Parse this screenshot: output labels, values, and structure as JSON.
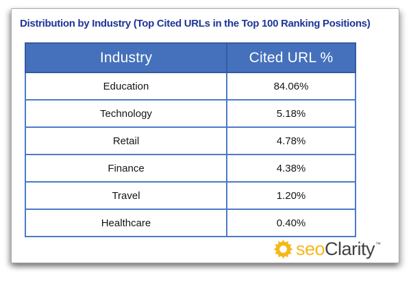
{
  "page": {
    "title": "Distribution by Industry (Top Cited URLs in the Top 100 Ranking Positions)"
  },
  "table": {
    "headers": [
      "Industry",
      "Cited URL %"
    ],
    "rows": [
      [
        "Education",
        "84.06%"
      ],
      [
        "Technology",
        "5.18%"
      ],
      [
        "Retail",
        "4.78%"
      ],
      [
        "Finance",
        "4.38%"
      ],
      [
        "Travel",
        "1.20%"
      ],
      [
        "Healthcare",
        "0.40%"
      ]
    ]
  },
  "logo": {
    "seo": "seo",
    "clarity": "Clarity",
    "trademark": "™",
    "icon": "sunburst-gear-icon"
  },
  "colors": {
    "header_bg": "#4571bc",
    "header_border": "#35599f",
    "cell_border": "#4a79c7",
    "title": "#1d3596",
    "logo_gold": "#F5B81C",
    "logo_dark": "#414042"
  },
  "chart_data": {
    "type": "table",
    "title": "Distribution by Industry (Top Cited URLs in the Top 100 Ranking Positions)",
    "columns": [
      "Industry",
      "Cited URL %"
    ],
    "categories": [
      "Education",
      "Technology",
      "Retail",
      "Finance",
      "Travel",
      "Healthcare"
    ],
    "values": [
      84.06,
      5.18,
      4.78,
      4.38,
      1.2,
      0.4
    ],
    "value_format": "percent",
    "header_style": "blue-filled-white-text",
    "grid": "blue-borders"
  }
}
